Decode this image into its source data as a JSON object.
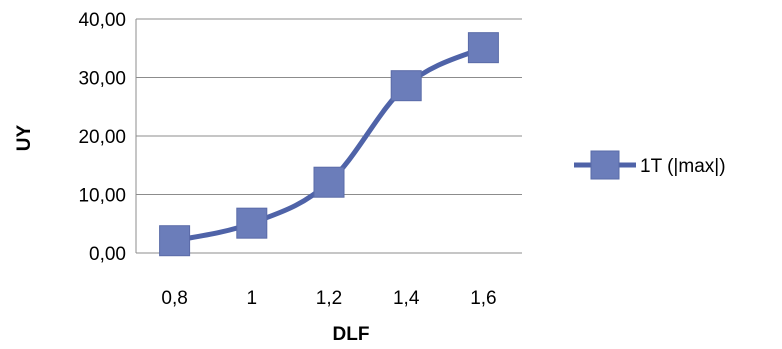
{
  "chart_data": {
    "type": "line",
    "categories": [
      "0,8",
      "1",
      "1,2",
      "1,4",
      "1,6"
    ],
    "series": [
      {
        "name": "1T (|max|)",
        "values": [
          2.1,
          5.1,
          12.1,
          28.6,
          35.1
        ],
        "color": "#6b7dba",
        "line_color": "#4f63a8"
      }
    ],
    "y_tick_labels": [
      "0,00",
      "10,00",
      "20,00",
      "30,00",
      "40,00"
    ],
    "ylim": [
      0,
      40
    ],
    "xlabel": "DLF",
    "ylabel": "UY",
    "grid": true,
    "legend_position": "right",
    "marker": "square"
  }
}
